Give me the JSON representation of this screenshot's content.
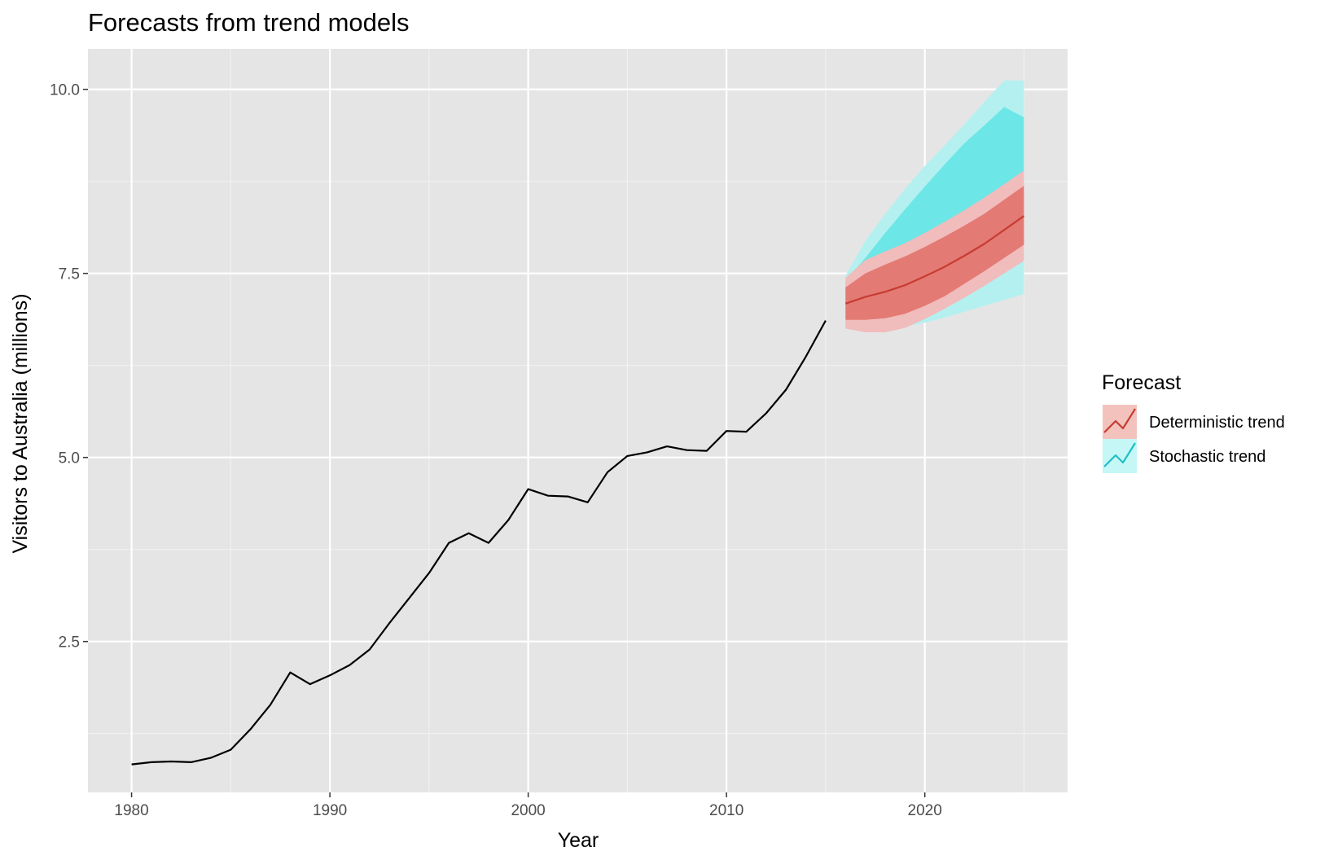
{
  "chart_data": {
    "type": "line",
    "title": "Forecasts from trend models",
    "xlabel": "Year",
    "ylabel": "Visitors to Australia (millions)",
    "xlim": [
      1977.8,
      2027.2
    ],
    "ylim": [
      0.45,
      10.55
    ],
    "x_ticks": [
      1980,
      1990,
      2000,
      2010,
      2020
    ],
    "x_tick_labels": [
      "1980",
      "1990",
      "2000",
      "2010",
      "2020"
    ],
    "y_ticks": [
      2.5,
      5.0,
      7.5,
      10.0
    ],
    "y_tick_labels": [
      "2.5",
      "5.0",
      "7.5",
      "10.0"
    ],
    "grid": true,
    "legend": {
      "title": "Forecast",
      "placement": "right",
      "entries": [
        {
          "label": "Deterministic trend",
          "line_color": "#c63c33",
          "fill_color": "#f3c2bd"
        },
        {
          "label": "Stochastic trend",
          "line_color": "#1fbfc4",
          "fill_color": "#c6f7f7"
        }
      ]
    },
    "historical": {
      "color": "#000000",
      "x": [
        1980,
        1981,
        1982,
        1983,
        1984,
        1985,
        1986,
        1987,
        1988,
        1989,
        1990,
        1991,
        1992,
        1993,
        1994,
        1995,
        1996,
        1997,
        1998,
        1999,
        2000,
        2001,
        2002,
        2003,
        2004,
        2005,
        2006,
        2007,
        2008,
        2009,
        2010,
        2011,
        2012,
        2013,
        2014,
        2015
      ],
      "y": [
        0.83,
        0.86,
        0.87,
        0.86,
        0.92,
        1.03,
        1.31,
        1.64,
        2.08,
        1.92,
        2.04,
        2.18,
        2.39,
        2.75,
        3.09,
        3.43,
        3.84,
        3.97,
        3.84,
        4.15,
        4.57,
        4.48,
        4.47,
        4.39,
        4.8,
        5.02,
        5.07,
        5.15,
        5.1,
        5.09,
        5.36,
        5.35,
        5.6,
        5.92,
        6.37,
        6.86
      ]
    },
    "forecast_x": [
      2016,
      2017,
      2018,
      2019,
      2020,
      2021,
      2022,
      2023,
      2024,
      2025
    ],
    "series": [
      {
        "name": "Stochastic trend",
        "hi95_color": "#b5f0f0",
        "hi80_color": "#6ce6e6",
        "lo95": [
          6.84,
          6.75,
          6.75,
          6.78,
          6.83,
          6.9,
          6.98,
          7.06,
          7.14,
          7.22
        ],
        "lo80": [
          7.06,
          7.07,
          7.1,
          7.23,
          7.34,
          7.46,
          7.59,
          7.74,
          7.87,
          8.01
        ],
        "hi80": [
          7.4,
          7.71,
          8.05,
          8.37,
          8.68,
          8.98,
          9.27,
          9.51,
          9.76,
          9.62
        ],
        "hi95": [
          7.47,
          7.94,
          8.31,
          8.65,
          8.96,
          9.24,
          9.53,
          9.83,
          10.12,
          10.12
        ]
      },
      {
        "name": "Deterministic trend",
        "line_color": "#c63c33",
        "band95_color": "#f0bcbc",
        "band80_color": "#e47a74",
        "mean": [
          7.09,
          7.18,
          7.25,
          7.34,
          7.46,
          7.59,
          7.74,
          7.9,
          8.09,
          8.28
        ],
        "lo95": [
          6.75,
          6.7,
          6.7,
          6.76,
          6.88,
          7.02,
          7.17,
          7.33,
          7.5,
          7.67
        ],
        "lo80": [
          6.87,
          6.87,
          6.89,
          6.95,
          7.06,
          7.19,
          7.36,
          7.53,
          7.71,
          7.89
        ],
        "hi80": [
          7.31,
          7.5,
          7.62,
          7.73,
          7.86,
          8.0,
          8.15,
          8.31,
          8.5,
          8.69
        ],
        "hi95": [
          7.44,
          7.68,
          7.8,
          7.91,
          8.05,
          8.2,
          8.36,
          8.53,
          8.71,
          8.9
        ]
      }
    ],
    "colors": {
      "panel_background": "#e5e5e5",
      "grid_major": "#ffffff",
      "grid_minor": "#f2f2f2",
      "tick_text": "#4d4d4d"
    }
  }
}
